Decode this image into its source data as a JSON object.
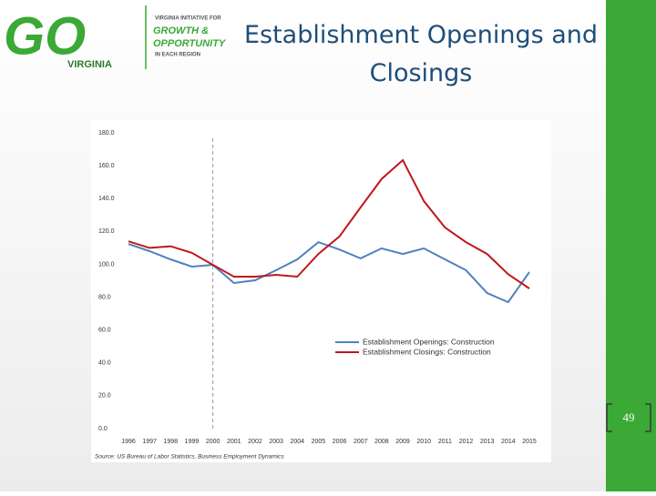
{
  "logo": {
    "mark": "GO",
    "state": "VIRGINIA",
    "line1": "VIRGINIA INITIATIVE FOR",
    "line2": "GROWTH &",
    "line3": "OPPORTUNITY",
    "line4": "IN EACH REGION"
  },
  "slide_title": "Establishment Openings and Closings",
  "page_number": "49",
  "chart_data": {
    "type": "line",
    "categories": [
      "1996",
      "1997",
      "1998",
      "1999",
      "2000",
      "2001",
      "2002",
      "2003",
      "2004",
      "2005",
      "2006",
      "2007",
      "2008",
      "2009",
      "2010",
      "2011",
      "2012",
      "2013",
      "2014",
      "2015"
    ],
    "series": [
      {
        "name": "Establishment Openings: Construction",
        "color": "#4f81bd",
        "values": [
          112.4,
          108,
          103,
          98.6,
          99.7,
          88.6,
          90.3,
          96.4,
          103,
          113.5,
          109,
          103.6,
          109.7,
          106.3,
          109.7,
          103,
          96.4,
          82.5,
          77,
          95.3
        ]
      },
      {
        "name": "Establishment Closings: Construction",
        "color": "#c0181c",
        "values": [
          114,
          110,
          111,
          107,
          99.7,
          92.5,
          92.5,
          93.6,
          92.5,
          106.3,
          117,
          134.6,
          152,
          163.4,
          138.5,
          122.4,
          113.5,
          106.3,
          94,
          85.3
        ]
      }
    ],
    "ylim": [
      0,
      180
    ],
    "yticks": [
      {
        "value": 0,
        "label": "0.0"
      },
      {
        "value": 20,
        "label": "20.0"
      },
      {
        "value": 40,
        "label": "40.0"
      },
      {
        "value": 60,
        "label": "60.0"
      },
      {
        "value": 80,
        "label": "80.0"
      },
      {
        "value": 100,
        "label": "100.0"
      },
      {
        "value": 120,
        "label": "120.0"
      },
      {
        "value": 140,
        "label": "140.0"
      },
      {
        "value": 160,
        "label": "160.0"
      },
      {
        "value": 180,
        "label": "180.0"
      }
    ],
    "reference_line": "2000",
    "source": "Source: US Bureau of Labor Statistics, Business Employment Dynamics"
  }
}
